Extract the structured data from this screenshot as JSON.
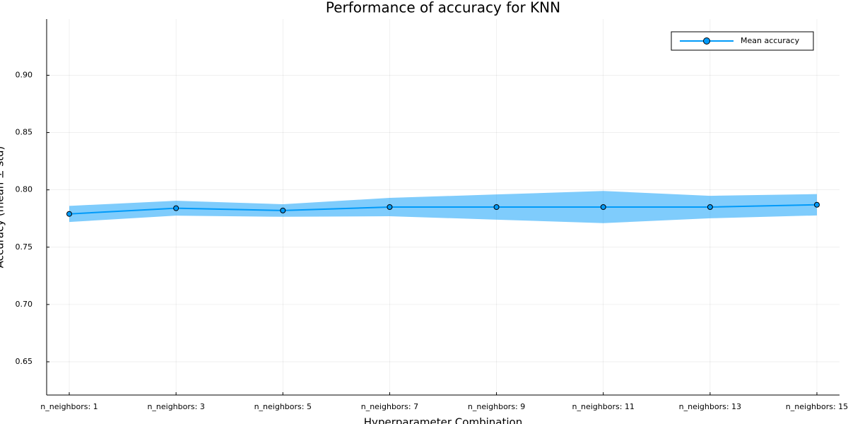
{
  "chart_data": {
    "type": "line",
    "title": "Performance of accuracy for KNN",
    "xlabel": "Hyperparameter Combination",
    "ylabel": "Accuracy (mean ± std)",
    "categories": [
      "n_neighbors: 1",
      "n_neighbors: 3",
      "n_neighbors: 5",
      "n_neighbors: 7",
      "n_neighbors: 9",
      "n_neighbors: 11",
      "n_neighbors: 13",
      "n_neighbors: 15"
    ],
    "series": [
      {
        "name": "Mean accuracy",
        "color": "#009af9",
        "values": [
          0.779,
          0.784,
          0.782,
          0.785,
          0.785,
          0.785,
          0.785,
          0.787
        ],
        "errors": [
          0.007,
          0.0065,
          0.0055,
          0.008,
          0.011,
          0.014,
          0.0098,
          0.0093
        ]
      }
    ],
    "ylim": [
      0.621,
      0.949
    ],
    "yticks": [
      {
        "value": 0.65,
        "label": "0.65"
      },
      {
        "value": 0.7,
        "label": "0.70"
      },
      {
        "value": 0.75,
        "label": "0.75"
      },
      {
        "value": 0.8,
        "label": "0.80"
      },
      {
        "value": 0.85,
        "label": "0.85"
      },
      {
        "value": 0.9,
        "label": "0.90"
      }
    ],
    "grid": true,
    "legend": "top-right"
  }
}
